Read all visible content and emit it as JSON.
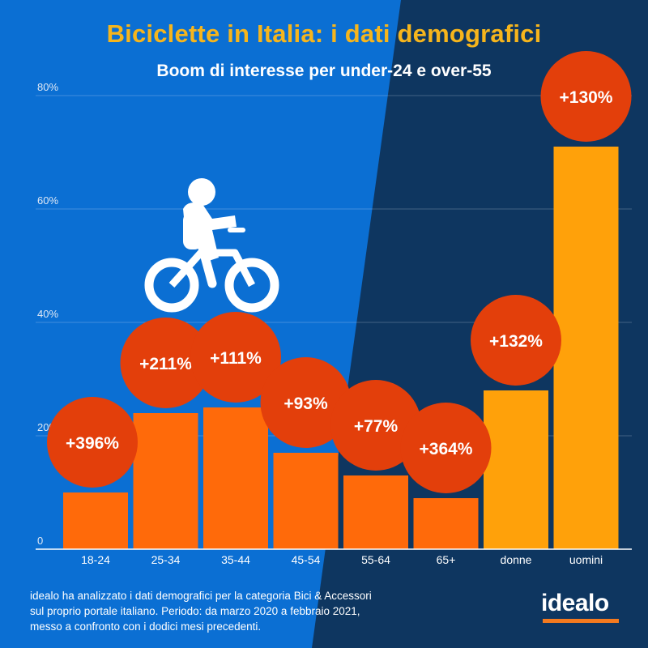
{
  "header": {
    "title": "Biciclette in Italia: i dati demografici",
    "subtitle": "Boom di interesse per under-24 e over-55"
  },
  "footnote": {
    "lines": [
      "idealo ha analizzato i dati demografici per la categoria Bici & Accessori",
      "sul proprio portale italiano. Periodo: da marzo 2020 a febbraio 2021,",
      "messo a confronto con i dodici mesi precedenti."
    ]
  },
  "brand": {
    "logo_text": "idealo"
  },
  "colors": {
    "bg_left": "#0b6fd3",
    "bg_right": "#0e3660",
    "bar_age": "#ff6a0a",
    "bar_gender": "#ffa10a",
    "bubble": "#e33f0b",
    "title": "#f6b51c",
    "accent": "#f47a1f"
  },
  "icons": {
    "decoration": "cyclist-icon"
  },
  "chart_data": {
    "type": "bar",
    "title": "Biciclette in Italia: i dati demografici",
    "subtitle": "Boom di interesse per under-24 e over-55",
    "xlabel": "",
    "ylabel": "",
    "ylim": [
      0,
      80
    ],
    "yticks": [
      0,
      20,
      40,
      60,
      80
    ],
    "ytick_labels": [
      "0",
      "20%",
      "40%",
      "60%",
      "80%"
    ],
    "grid": true,
    "categories": [
      "18-24",
      "25-34",
      "35-44",
      "45-54",
      "55-64",
      "65+",
      "donne",
      "uomini"
    ],
    "groups": [
      "age",
      "age",
      "age",
      "age",
      "age",
      "age",
      "gender",
      "gender"
    ],
    "values": [
      10,
      24,
      25,
      17,
      13,
      9,
      28,
      71
    ],
    "annotations": [
      "+396%",
      "+211%",
      "+111%",
      "+93%",
      "+77%",
      "+364%",
      "+132%",
      "+130%"
    ]
  }
}
